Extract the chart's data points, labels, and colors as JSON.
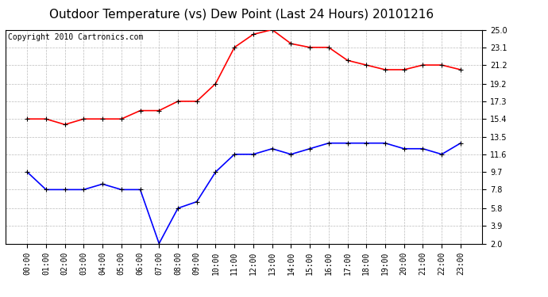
{
  "title": "Outdoor Temperature (vs) Dew Point (Last 24 Hours) 20101216",
  "copyright": "Copyright 2010 Cartronics.com",
  "x_labels": [
    "00:00",
    "01:00",
    "02:00",
    "03:00",
    "04:00",
    "05:00",
    "06:00",
    "07:00",
    "08:00",
    "09:00",
    "10:00",
    "11:00",
    "12:00",
    "13:00",
    "14:00",
    "15:00",
    "16:00",
    "17:00",
    "18:00",
    "19:00",
    "20:00",
    "21:00",
    "22:00",
    "23:00"
  ],
  "temp_red": [
    15.4,
    15.4,
    14.8,
    15.4,
    15.4,
    15.4,
    16.3,
    16.3,
    17.3,
    17.3,
    19.2,
    23.1,
    24.5,
    25.0,
    23.5,
    23.1,
    23.1,
    21.7,
    21.2,
    20.7,
    20.7,
    21.2,
    21.2,
    20.7
  ],
  "dew_blue": [
    9.7,
    7.8,
    7.8,
    7.8,
    8.4,
    7.8,
    7.8,
    2.0,
    5.8,
    6.5,
    9.7,
    11.6,
    11.6,
    12.2,
    11.6,
    12.2,
    12.8,
    12.8,
    12.8,
    12.8,
    12.2,
    12.2,
    11.6,
    12.8
  ],
  "ylim": [
    2.0,
    25.0
  ],
  "yticks": [
    2.0,
    3.9,
    5.8,
    7.8,
    9.7,
    11.6,
    13.5,
    15.4,
    17.3,
    19.2,
    21.2,
    23.1,
    25.0
  ],
  "bg_color": "#ffffff",
  "grid_color": "#bbbbbb",
  "title_fontsize": 11,
  "axis_label_fontsize": 7,
  "copyright_fontsize": 7
}
